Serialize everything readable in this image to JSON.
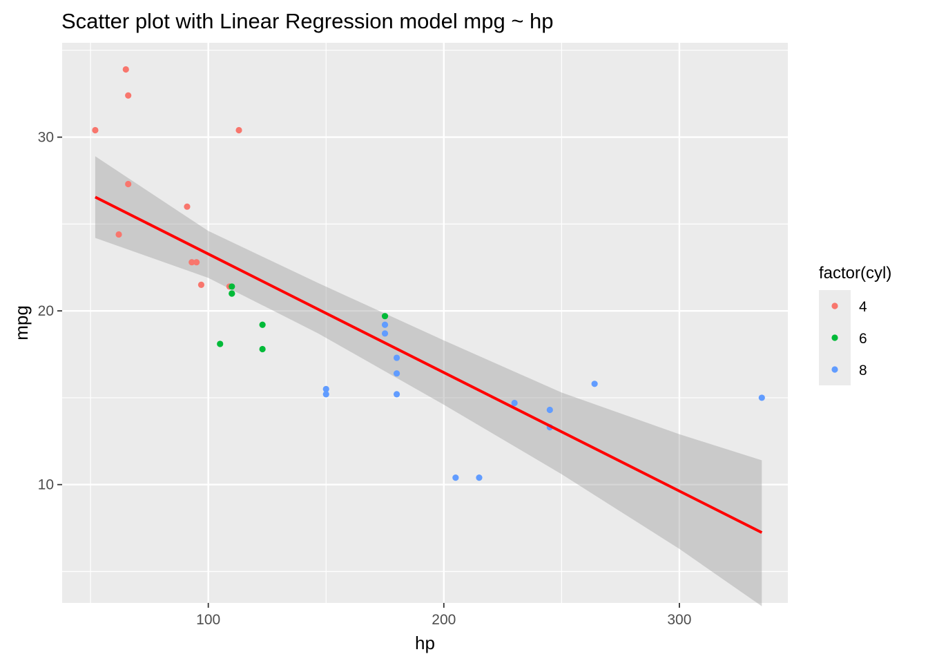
{
  "chart_data": {
    "type": "scatter",
    "title": "Scatter plot with Linear Regression model mpg ~ hp",
    "xlabel": "hp",
    "ylabel": "mpg",
    "xlim": [
      37.95,
      346.05
    ],
    "ylim": [
      3.19,
      35.43
    ],
    "x_ticks": [
      100,
      200,
      300
    ],
    "x_tick_labels": [
      "100",
      "200",
      "300"
    ],
    "x_minor_ticks": [
      50,
      150,
      250
    ],
    "y_ticks": [
      10,
      20,
      30
    ],
    "y_tick_labels": [
      "10",
      "20",
      "30"
    ],
    "y_minor_ticks": [
      5,
      15,
      25,
      35
    ],
    "grid": true,
    "legend": {
      "title": "factor(cyl)",
      "position": "right",
      "entries": [
        {
          "label": "4",
          "color": "#F8766D"
        },
        {
          "label": "6",
          "color": "#00BA38"
        },
        {
          "label": "8",
          "color": "#619CFF"
        }
      ]
    },
    "series": [
      {
        "name": "4",
        "color": "#F8766D",
        "points": [
          [
            93,
            22.8
          ],
          [
            62,
            24.4
          ],
          [
            95,
            22.8
          ],
          [
            66,
            32.4
          ],
          [
            52,
            30.4
          ],
          [
            65,
            33.9
          ],
          [
            97,
            21.5
          ],
          [
            66,
            27.3
          ],
          [
            91,
            26.0
          ],
          [
            113,
            30.4
          ],
          [
            109,
            21.4
          ]
        ]
      },
      {
        "name": "6",
        "color": "#00BA38",
        "points": [
          [
            110,
            21.0
          ],
          [
            110,
            21.0
          ],
          [
            110,
            21.4
          ],
          [
            105,
            18.1
          ],
          [
            123,
            19.2
          ],
          [
            123,
            17.8
          ],
          [
            175,
            19.7
          ]
        ]
      },
      {
        "name": "8",
        "color": "#619CFF",
        "points": [
          [
            175,
            18.7
          ],
          [
            245,
            14.3
          ],
          [
            180,
            16.4
          ],
          [
            180,
            17.3
          ],
          [
            180,
            15.2
          ],
          [
            205,
            10.4
          ],
          [
            215,
            10.4
          ],
          [
            230,
            14.7
          ],
          [
            150,
            15.5
          ],
          [
            150,
            15.2
          ],
          [
            245,
            13.3
          ],
          [
            175,
            19.2
          ],
          [
            264,
            15.8
          ],
          [
            335,
            15.0
          ]
        ]
      }
    ],
    "regression": {
      "color": "#FF0000",
      "ci_color": "#999999",
      "line": [
        [
          52,
          26.55
        ],
        [
          335,
          7.24
        ]
      ],
      "ci_band": [
        {
          "x": 52,
          "lower": 24.2,
          "upper": 28.9
        },
        {
          "x": 100,
          "lower": 21.9,
          "upper": 24.6
        },
        {
          "x": 146.7,
          "lower": 18.7,
          "upper": 21.6
        },
        {
          "x": 200,
          "lower": 14.6,
          "upper": 18.3
        },
        {
          "x": 250,
          "lower": 10.6,
          "upper": 15.3
        },
        {
          "x": 300,
          "lower": 6.3,
          "upper": 12.9
        },
        {
          "x": 335,
          "lower": 3.0,
          "upper": 11.4
        }
      ]
    }
  }
}
